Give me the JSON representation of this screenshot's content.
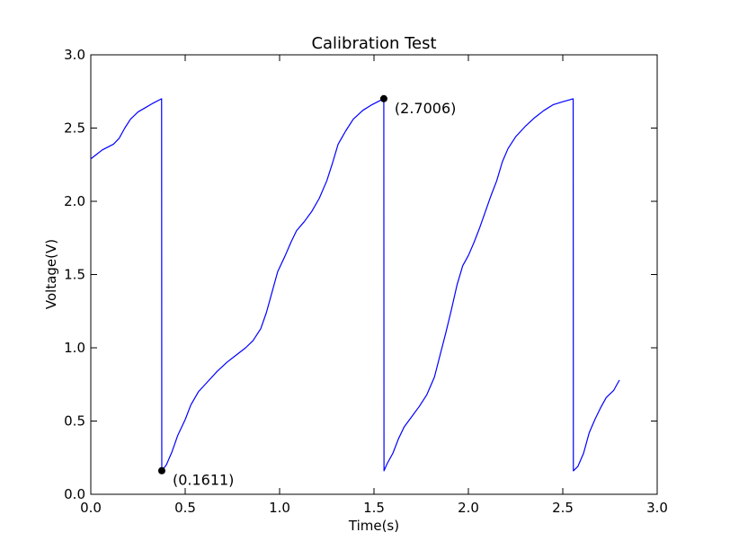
{
  "chart_data": {
    "type": "line",
    "title": "Calibration Test",
    "xlabel": "Time(s)",
    "ylabel": "Voltage(V)",
    "xlim": [
      0.0,
      3.0
    ],
    "ylim": [
      0.0,
      3.0
    ],
    "x_ticks": [
      0.0,
      0.5,
      1.0,
      1.5,
      2.0,
      2.5,
      3.0
    ],
    "y_ticks": [
      0.0,
      0.5,
      1.0,
      1.5,
      2.0,
      2.5,
      3.0
    ],
    "x_tick_labels": [
      "0.0",
      "0.5",
      "1.0",
      "1.5",
      "2.0",
      "2.5",
      "3.0"
    ],
    "y_tick_labels": [
      "0.0",
      "0.5",
      "1.0",
      "1.5",
      "2.0",
      "2.5",
      "3.0"
    ],
    "grid": false,
    "legend": false,
    "series": [
      {
        "color": "#0000ff",
        "points": [
          [
            0.0,
            2.29
          ],
          [
            0.03,
            2.32
          ],
          [
            0.06,
            2.35
          ],
          [
            0.09,
            2.37
          ],
          [
            0.12,
            2.39
          ],
          [
            0.15,
            2.43
          ],
          [
            0.18,
            2.5
          ],
          [
            0.21,
            2.56
          ],
          [
            0.25,
            2.61
          ],
          [
            0.29,
            2.64
          ],
          [
            0.33,
            2.67
          ],
          [
            0.375,
            2.7
          ],
          [
            0.376,
            0.1611
          ],
          [
            0.4,
            0.2
          ],
          [
            0.43,
            0.29
          ],
          [
            0.46,
            0.4
          ],
          [
            0.5,
            0.51
          ],
          [
            0.53,
            0.61
          ],
          [
            0.57,
            0.7
          ],
          [
            0.62,
            0.77
          ],
          [
            0.67,
            0.84
          ],
          [
            0.72,
            0.9
          ],
          [
            0.77,
            0.95
          ],
          [
            0.82,
            1.0
          ],
          [
            0.86,
            1.05
          ],
          [
            0.9,
            1.13
          ],
          [
            0.93,
            1.24
          ],
          [
            0.96,
            1.38
          ],
          [
            0.99,
            1.52
          ],
          [
            1.03,
            1.63
          ],
          [
            1.06,
            1.72
          ],
          [
            1.09,
            1.8
          ],
          [
            1.13,
            1.86
          ],
          [
            1.17,
            1.93
          ],
          [
            1.21,
            2.02
          ],
          [
            1.25,
            2.14
          ],
          [
            1.28,
            2.26
          ],
          [
            1.31,
            2.39
          ],
          [
            1.35,
            2.48
          ],
          [
            1.39,
            2.56
          ],
          [
            1.44,
            2.62
          ],
          [
            1.49,
            2.66
          ],
          [
            1.52,
            2.68
          ],
          [
            1.552,
            2.7006
          ],
          [
            1.553,
            0.16
          ],
          [
            1.57,
            0.21
          ],
          [
            1.6,
            0.28
          ],
          [
            1.63,
            0.38
          ],
          [
            1.66,
            0.46
          ],
          [
            1.7,
            0.53
          ],
          [
            1.74,
            0.6
          ],
          [
            1.78,
            0.68
          ],
          [
            1.82,
            0.8
          ],
          [
            1.85,
            0.95
          ],
          [
            1.88,
            1.1
          ],
          [
            1.91,
            1.26
          ],
          [
            1.94,
            1.43
          ],
          [
            1.97,
            1.56
          ],
          [
            2.0,
            1.63
          ],
          [
            2.03,
            1.72
          ],
          [
            2.06,
            1.82
          ],
          [
            2.09,
            1.93
          ],
          [
            2.12,
            2.04
          ],
          [
            2.15,
            2.14
          ],
          [
            2.18,
            2.27
          ],
          [
            2.21,
            2.36
          ],
          [
            2.25,
            2.44
          ],
          [
            2.3,
            2.51
          ],
          [
            2.35,
            2.57
          ],
          [
            2.4,
            2.62
          ],
          [
            2.45,
            2.66
          ],
          [
            2.5,
            2.68
          ],
          [
            2.555,
            2.7
          ],
          [
            2.556,
            0.16
          ],
          [
            2.58,
            0.19
          ],
          [
            2.61,
            0.28
          ],
          [
            2.64,
            0.42
          ],
          [
            2.67,
            0.51
          ],
          [
            2.7,
            0.59
          ],
          [
            2.73,
            0.66
          ],
          [
            2.77,
            0.71
          ],
          [
            2.8,
            0.78
          ]
        ]
      }
    ],
    "markers": [
      {
        "x": 0.376,
        "y": 0.1611,
        "label": "(0.1611)"
      },
      {
        "x": 1.552,
        "y": 2.7006,
        "label": "(2.7006)"
      }
    ]
  }
}
